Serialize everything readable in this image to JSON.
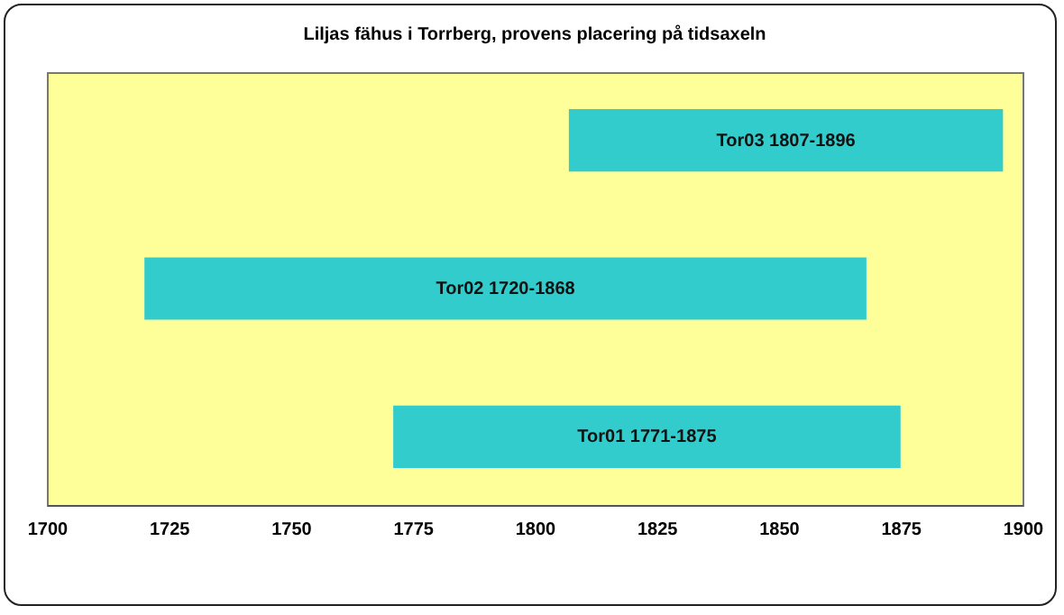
{
  "chart_data": {
    "type": "bar",
    "orientation": "horizontal",
    "title": "Liljas fähus i Torrberg, provens placering på tidsaxeln",
    "categories": [
      null,
      null,
      null
    ],
    "base": [
      1807,
      1720,
      1771
    ],
    "values": [
      89,
      148,
      104
    ],
    "value_labels": [
      "Tor03  1807-1896",
      "Tor02  1720-1868",
      "Tor01  1771-1875"
    ],
    "color": "#33cccc",
    "xlim": [
      1700,
      1900
    ],
    "xticks": [
      1700,
      1725,
      1750,
      1775,
      1800,
      1825,
      1850,
      1875,
      1900
    ],
    "grid": false
  }
}
